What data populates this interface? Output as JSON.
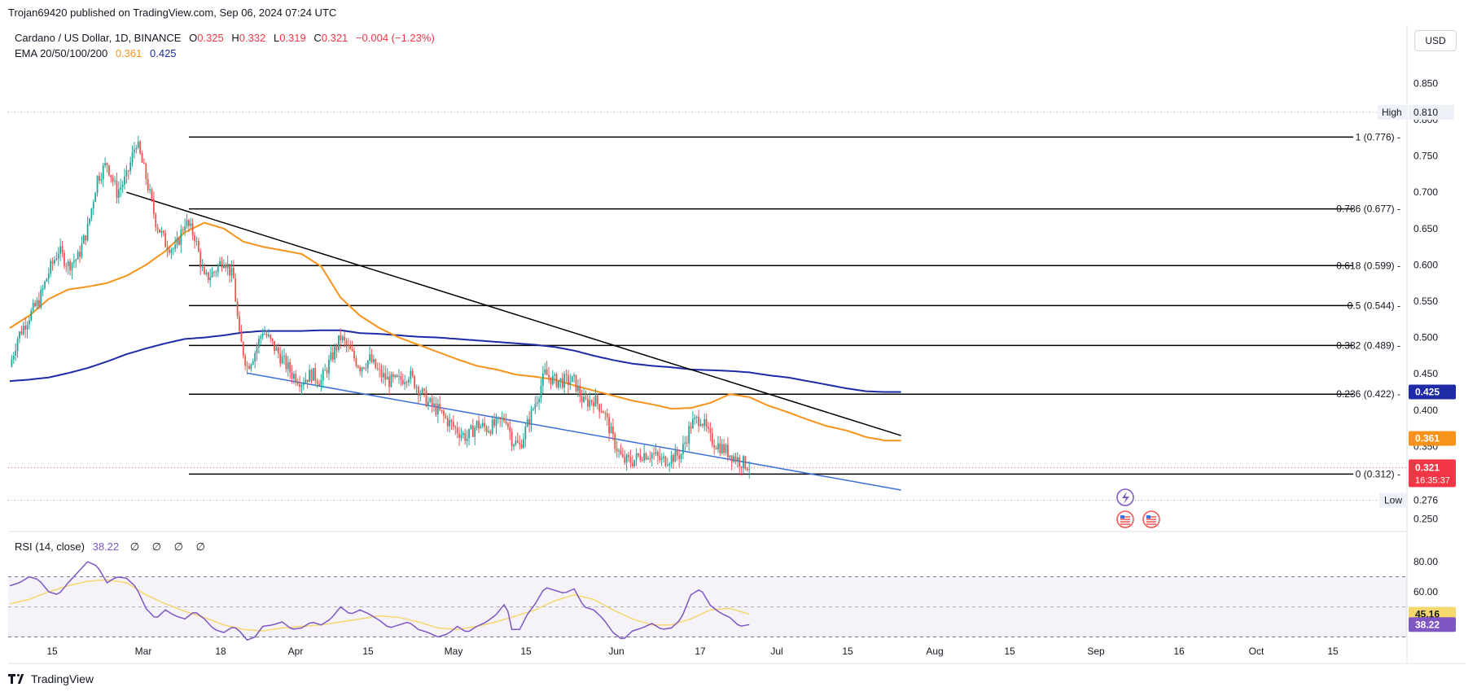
{
  "header": {
    "published_by": "Trojan69420 published on TradingView.com, Sep 06, 2024 07:24 UTC"
  },
  "legend": {
    "symbol": "Cardano / US Dollar, 1D, BINANCE",
    "open_label": "O",
    "open": "0.325",
    "high_label": "H",
    "high": "0.332",
    "low_label": "L",
    "low": "0.319",
    "close_label": "C",
    "close": "0.321",
    "change": "−0.004 (−1.23%)",
    "ema_label": "EMA 20/50/100/200",
    "ema_values": [
      "0.361",
      "0.425"
    ]
  },
  "rsi": {
    "label": "RSI (14, close)",
    "value": "38.22",
    "placeholders": "∅ ∅ ∅ ∅",
    "axis_ticks": [
      "80.00",
      "60.00"
    ],
    "badges": [
      "45.16",
      "38.22"
    ]
  },
  "currency_button": "USD",
  "footer": {
    "brand": "TradingView"
  },
  "colors": {
    "up": "#26a69a",
    "down": "#ef5350",
    "ema50": "#f7931a",
    "ema200": "#1e2aa6",
    "trendline_lower": "#3a6fd8",
    "rsi": "#7e57c2",
    "rsi_ma": "#f5d76e",
    "price_badge": "#f23645"
  },
  "chart_data": [
    {
      "type": "candlestick",
      "title": "Cardano / US Dollar, 1D, BINANCE",
      "x_ticks": [
        "15",
        "Mar",
        "18",
        "Apr",
        "15",
        "May",
        "15",
        "Jun",
        "17",
        "Jul",
        "15",
        "Aug",
        "15",
        "Sep",
        "16",
        "Oct",
        "15"
      ],
      "y_ticks": [
        "0.850",
        "0.800",
        "0.750",
        "0.700",
        "0.650",
        "0.600",
        "0.550",
        "0.500",
        "0.450",
        "0.400",
        "0.350",
        "0.250"
      ],
      "ylim": [
        0.225,
        0.875
      ],
      "high_marker": {
        "label": "High",
        "value": "0.810"
      },
      "low_marker": {
        "label": "Low",
        "value": "0.276"
      },
      "last_price": {
        "value": "0.321",
        "countdown": "16:35:37"
      },
      "ema_badges": [
        {
          "value": "0.425",
          "color": "#1e2aa6"
        },
        {
          "value": "0.361",
          "color": "#f7931a"
        }
      ],
      "fib_levels": [
        {
          "label": "1 (0.776)",
          "value": 0.776
        },
        {
          "label": "0.786 (0.677)",
          "value": 0.677
        },
        {
          "label": "0.618 (0.599)",
          "value": 0.599
        },
        {
          "label": "0.5 (0.544)",
          "value": 0.544
        },
        {
          "label": "0.382 (0.489)",
          "value": 0.489
        },
        {
          "label": "0.236 (0.422)",
          "value": 0.422
        },
        {
          "label": "0 (0.312)",
          "value": 0.312
        }
      ],
      "ema50_anchors": [
        [
          0,
          0.513
        ],
        [
          10,
          0.53
        ],
        [
          20,
          0.553
        ],
        [
          30,
          0.566
        ],
        [
          40,
          0.57
        ],
        [
          50,
          0.575
        ],
        [
          60,
          0.585
        ],
        [
          70,
          0.6
        ],
        [
          80,
          0.619
        ],
        [
          90,
          0.645
        ],
        [
          100,
          0.658
        ],
        [
          110,
          0.65
        ],
        [
          120,
          0.632
        ],
        [
          130,
          0.625
        ],
        [
          140,
          0.62
        ],
        [
          150,
          0.615
        ],
        [
          160,
          0.598
        ],
        [
          170,
          0.555
        ],
        [
          180,
          0.53
        ],
        [
          190,
          0.513
        ],
        [
          200,
          0.5
        ],
        [
          210,
          0.49
        ],
        [
          220,
          0.48
        ],
        [
          230,
          0.47
        ],
        [
          240,
          0.461
        ],
        [
          250,
          0.456
        ],
        [
          260,
          0.449
        ],
        [
          270,
          0.446
        ],
        [
          280,
          0.442
        ],
        [
          290,
          0.434
        ],
        [
          300,
          0.427
        ],
        [
          310,
          0.42
        ],
        [
          320,
          0.413
        ],
        [
          330,
          0.408
        ],
        [
          340,
          0.402
        ],
        [
          350,
          0.403
        ],
        [
          360,
          0.41
        ],
        [
          370,
          0.422
        ],
        [
          380,
          0.418
        ],
        [
          390,
          0.406
        ],
        [
          400,
          0.397
        ],
        [
          410,
          0.387
        ],
        [
          420,
          0.378
        ],
        [
          430,
          0.372
        ],
        [
          440,
          0.363
        ],
        [
          450,
          0.358
        ]
      ],
      "ema200_anchors": [
        [
          0,
          0.44
        ],
        [
          10,
          0.442
        ],
        [
          20,
          0.445
        ],
        [
          30,
          0.451
        ],
        [
          40,
          0.458
        ],
        [
          50,
          0.467
        ],
        [
          60,
          0.477
        ],
        [
          70,
          0.485
        ],
        [
          80,
          0.492
        ],
        [
          90,
          0.498
        ],
        [
          100,
          0.5
        ],
        [
          110,
          0.503
        ],
        [
          120,
          0.507
        ],
        [
          130,
          0.509
        ],
        [
          140,
          0.509
        ],
        [
          150,
          0.509
        ],
        [
          160,
          0.51
        ],
        [
          170,
          0.51
        ],
        [
          180,
          0.506
        ],
        [
          190,
          0.505
        ],
        [
          200,
          0.503
        ],
        [
          210,
          0.501
        ],
        [
          220,
          0.5
        ],
        [
          230,
          0.498
        ],
        [
          240,
          0.496
        ],
        [
          250,
          0.494
        ],
        [
          260,
          0.492
        ],
        [
          270,
          0.49
        ],
        [
          280,
          0.487
        ],
        [
          290,
          0.482
        ],
        [
          300,
          0.475
        ],
        [
          310,
          0.469
        ],
        [
          320,
          0.464
        ],
        [
          330,
          0.461
        ],
        [
          340,
          0.459
        ],
        [
          350,
          0.456
        ],
        [
          360,
          0.455
        ],
        [
          370,
          0.454
        ],
        [
          380,
          0.452
        ],
        [
          390,
          0.448
        ],
        [
          400,
          0.445
        ],
        [
          410,
          0.44
        ],
        [
          420,
          0.435
        ],
        [
          430,
          0.43
        ],
        [
          440,
          0.426
        ],
        [
          450,
          0.425
        ]
      ],
      "trendlines": [
        {
          "name": "upper",
          "from": [
            60,
            0.7
          ],
          "to": [
            458,
            0.365
          ],
          "color": "#000000"
        },
        {
          "name": "lower",
          "from": [
            122,
            0.451
          ],
          "to": [
            458,
            0.29
          ],
          "color": "#3a6fd8"
        }
      ],
      "close_anchors": [
        [
          0,
          0.46
        ],
        [
          4,
          0.5
        ],
        [
          10,
          0.53
        ],
        [
          15,
          0.55
        ],
        [
          20,
          0.59
        ],
        [
          25,
          0.62
        ],
        [
          30,
          0.6
        ],
        [
          35,
          0.61
        ],
        [
          40,
          0.65
        ],
        [
          45,
          0.72
        ],
        [
          50,
          0.74
        ],
        [
          55,
          0.7
        ],
        [
          60,
          0.72
        ],
        [
          65,
          0.77
        ],
        [
          70,
          0.72
        ],
        [
          75,
          0.66
        ],
        [
          80,
          0.63
        ],
        [
          85,
          0.62
        ],
        [
          90,
          0.66
        ],
        [
          95,
          0.64
        ],
        [
          100,
          0.58
        ],
        [
          105,
          0.59
        ],
        [
          110,
          0.61
        ],
        [
          115,
          0.58
        ],
        [
          118,
          0.5
        ],
        [
          122,
          0.46
        ],
        [
          126,
          0.48
        ],
        [
          130,
          0.51
        ],
        [
          135,
          0.49
        ],
        [
          140,
          0.47
        ],
        [
          145,
          0.45
        ],
        [
          150,
          0.44
        ],
        [
          155,
          0.45
        ],
        [
          160,
          0.44
        ],
        [
          165,
          0.47
        ],
        [
          170,
          0.5
        ],
        [
          175,
          0.48
        ],
        [
          180,
          0.46
        ],
        [
          185,
          0.47
        ],
        [
          190,
          0.45
        ],
        [
          195,
          0.44
        ],
        [
          200,
          0.44
        ],
        [
          205,
          0.45
        ],
        [
          210,
          0.43
        ],
        [
          215,
          0.41
        ],
        [
          220,
          0.4
        ],
        [
          225,
          0.385
        ],
        [
          230,
          0.372
        ],
        [
          235,
          0.362
        ],
        [
          240,
          0.38
        ],
        [
          245,
          0.375
        ],
        [
          250,
          0.38
        ],
        [
          255,
          0.39
        ],
        [
          258,
          0.36
        ],
        [
          262,
          0.35
        ],
        [
          266,
          0.38
        ],
        [
          270,
          0.41
        ],
        [
          275,
          0.45
        ],
        [
          280,
          0.44
        ],
        [
          285,
          0.44
        ],
        [
          290,
          0.44
        ],
        [
          295,
          0.41
        ],
        [
          300,
          0.415
        ],
        [
          305,
          0.4
        ],
        [
          310,
          0.36
        ],
        [
          315,
          0.33
        ],
        [
          320,
          0.33
        ],
        [
          325,
          0.34
        ],
        [
          330,
          0.34
        ],
        [
          335,
          0.33
        ],
        [
          340,
          0.335
        ],
        [
          345,
          0.34
        ],
        [
          350,
          0.38
        ],
        [
          355,
          0.39
        ],
        [
          360,
          0.36
        ],
        [
          365,
          0.35
        ],
        [
          370,
          0.34
        ],
        [
          375,
          0.33
        ],
        [
          380,
          0.323
        ]
      ],
      "rsi_anchors": [
        [
          0,
          64
        ],
        [
          5,
          66
        ],
        [
          10,
          70
        ],
        [
          15,
          68
        ],
        [
          20,
          60
        ],
        [
          25,
          58
        ],
        [
          30,
          66
        ],
        [
          35,
          73
        ],
        [
          40,
          80
        ],
        [
          45,
          77
        ],
        [
          50,
          66
        ],
        [
          55,
          70
        ],
        [
          60,
          69
        ],
        [
          65,
          63
        ],
        [
          70,
          49
        ],
        [
          75,
          42
        ],
        [
          80,
          48
        ],
        [
          85,
          44
        ],
        [
          90,
          42
        ],
        [
          95,
          47
        ],
        [
          100,
          42
        ],
        [
          105,
          35
        ],
        [
          110,
          33
        ],
        [
          115,
          37
        ],
        [
          118,
          34
        ],
        [
          122,
          28
        ],
        [
          126,
          30
        ],
        [
          130,
          37
        ],
        [
          135,
          38
        ],
        [
          140,
          40
        ],
        [
          145,
          35
        ],
        [
          150,
          36
        ],
        [
          155,
          40
        ],
        [
          160,
          38
        ],
        [
          165,
          42
        ],
        [
          170,
          50
        ],
        [
          175,
          45
        ],
        [
          180,
          48
        ],
        [
          185,
          45
        ],
        [
          190,
          41
        ],
        [
          195,
          36
        ],
        [
          200,
          38
        ],
        [
          205,
          40
        ],
        [
          210,
          35
        ],
        [
          215,
          33
        ],
        [
          220,
          30
        ],
        [
          225,
          32
        ],
        [
          230,
          37
        ],
        [
          235,
          33
        ],
        [
          240,
          37
        ],
        [
          245,
          40
        ],
        [
          250,
          45
        ],
        [
          255,
          53
        ],
        [
          258,
          35
        ],
        [
          262,
          35
        ],
        [
          266,
          45
        ],
        [
          270,
          52
        ],
        [
          275,
          63
        ],
        [
          280,
          61
        ],
        [
          285,
          59
        ],
        [
          290,
          62
        ],
        [
          295,
          50
        ],
        [
          300,
          48
        ],
        [
          305,
          42
        ],
        [
          310,
          33
        ],
        [
          315,
          28
        ],
        [
          320,
          34
        ],
        [
          325,
          36
        ],
        [
          330,
          39
        ],
        [
          335,
          35
        ],
        [
          340,
          36
        ],
        [
          345,
          42
        ],
        [
          350,
          58
        ],
        [
          355,
          62
        ],
        [
          360,
          51
        ],
        [
          365,
          46
        ],
        [
          370,
          43
        ],
        [
          375,
          37
        ],
        [
          380,
          38.2
        ]
      ],
      "rsi_ma_anchors": [
        [
          0,
          52
        ],
        [
          10,
          55
        ],
        [
          20,
          60
        ],
        [
          30,
          64
        ],
        [
          40,
          67
        ],
        [
          50,
          68
        ],
        [
          60,
          66
        ],
        [
          70,
          58
        ],
        [
          80,
          52
        ],
        [
          90,
          47
        ],
        [
          100,
          43
        ],
        [
          110,
          38
        ],
        [
          120,
          35
        ],
        [
          130,
          34
        ],
        [
          140,
          36
        ],
        [
          150,
          37
        ],
        [
          160,
          38
        ],
        [
          170,
          40
        ],
        [
          180,
          42
        ],
        [
          190,
          44
        ],
        [
          200,
          43
        ],
        [
          210,
          40
        ],
        [
          220,
          36
        ],
        [
          230,
          35
        ],
        [
          240,
          37
        ],
        [
          250,
          40
        ],
        [
          260,
          44
        ],
        [
          270,
          48
        ],
        [
          280,
          54
        ],
        [
          290,
          58
        ],
        [
          300,
          55
        ],
        [
          310,
          48
        ],
        [
          320,
          42
        ],
        [
          330,
          38
        ],
        [
          340,
          38
        ],
        [
          350,
          42
        ],
        [
          360,
          48
        ],
        [
          370,
          49
        ],
        [
          380,
          45.2
        ]
      ]
    }
  ]
}
